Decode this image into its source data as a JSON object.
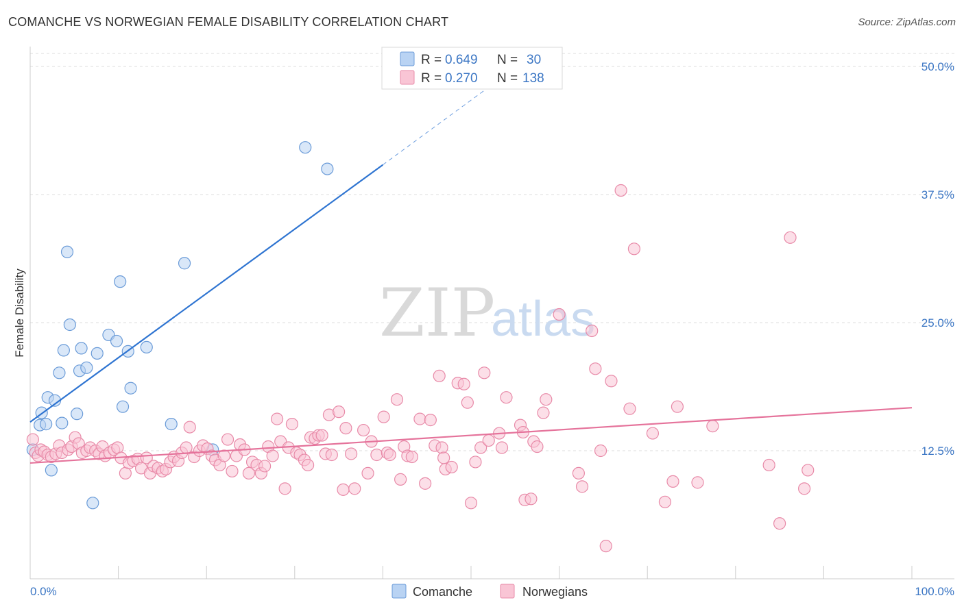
{
  "title": "COMANCHE VS NORWEGIAN FEMALE DISABILITY CORRELATION CHART",
  "source": "Source: ZipAtlas.com",
  "watermark": {
    "zip": "ZIP",
    "atlas": "atlas"
  },
  "legend": {
    "rows": [
      {
        "r_label": "R =",
        "r_value": "0.649",
        "n_label": "N =",
        "n_value": "30",
        "color": "#b9d3f3",
        "stroke": "#6a9bd8"
      },
      {
        "r_label": "R =",
        "r_value": "0.270",
        "n_label": "N =",
        "n_value": "138",
        "color": "#f9c5d5",
        "stroke": "#e88aa8"
      }
    ]
  },
  "bottom_legend": [
    {
      "label": "Comanche",
      "color": "#b9d3f3",
      "stroke": "#6a9bd8"
    },
    {
      "label": "Norwegians",
      "color": "#f9c5d5",
      "stroke": "#e88aa8"
    }
  ],
  "chart_data": {
    "type": "scatter",
    "title": "COMANCHE VS NORWEGIAN FEMALE DISABILITY CORRELATION CHART",
    "xlabel": "",
    "ylabel": "Female Disability",
    "xlim": [
      0,
      100
    ],
    "ylim": [
      0,
      50
    ],
    "x_tick_labels": [
      "0.0%",
      "100.0%"
    ],
    "y_ticks": [
      12.5,
      25.0,
      37.5,
      50.0
    ],
    "y_tick_labels": [
      "12.5%",
      "25.0%",
      "37.5%",
      "50.0%"
    ],
    "grid": true,
    "legend_position": "top-center",
    "series": [
      {
        "name": "Comanche",
        "color": "#6a9bd8",
        "fill": "#b9d3f3",
        "line_color": "#2e74d1",
        "trend": {
          "x0": 0,
          "y0": 15.3,
          "x1": 40,
          "y1": 40.4,
          "dash_to_x": 53,
          "dash_to_y": 48.6
        },
        "points": [
          [
            0.3,
            12.6
          ],
          [
            1.1,
            15.0
          ],
          [
            1.3,
            16.2
          ],
          [
            1.8,
            15.1
          ],
          [
            2.0,
            17.7
          ],
          [
            2.4,
            10.6
          ],
          [
            2.8,
            17.4
          ],
          [
            3.3,
            20.1
          ],
          [
            3.6,
            15.2
          ],
          [
            3.8,
            22.3
          ],
          [
            4.2,
            31.9
          ],
          [
            4.5,
            24.8
          ],
          [
            5.3,
            16.1
          ],
          [
            5.6,
            20.3
          ],
          [
            5.8,
            22.5
          ],
          [
            6.4,
            20.6
          ],
          [
            7.1,
            7.4
          ],
          [
            7.6,
            22.0
          ],
          [
            8.9,
            23.8
          ],
          [
            9.8,
            23.2
          ],
          [
            10.2,
            29.0
          ],
          [
            10.5,
            16.8
          ],
          [
            11.1,
            22.2
          ],
          [
            11.4,
            18.6
          ],
          [
            13.2,
            22.6
          ],
          [
            16.0,
            15.1
          ],
          [
            17.5,
            30.8
          ],
          [
            20.7,
            12.6
          ],
          [
            31.2,
            42.1
          ],
          [
            33.7,
            40.0
          ]
        ]
      },
      {
        "name": "Norwegians",
        "color": "#e88aa8",
        "fill": "#f9c5d5",
        "line_color": "#e5739b",
        "trend": {
          "x0": 0,
          "y0": 11.3,
          "x1": 100,
          "y1": 16.7
        },
        "points": [
          [
            0.3,
            13.6
          ],
          [
            0.6,
            12.3
          ],
          [
            0.9,
            12.0
          ],
          [
            1.2,
            12.6
          ],
          [
            1.6,
            12.4
          ],
          [
            2.0,
            12.1
          ],
          [
            2.4,
            11.9
          ],
          [
            2.9,
            12.2
          ],
          [
            3.3,
            13.0
          ],
          [
            3.6,
            12.3
          ],
          [
            4.3,
            12.6
          ],
          [
            4.7,
            12.9
          ],
          [
            5.1,
            13.8
          ],
          [
            5.5,
            13.2
          ],
          [
            5.9,
            12.3
          ],
          [
            6.4,
            12.5
          ],
          [
            6.8,
            12.8
          ],
          [
            7.4,
            12.5
          ],
          [
            7.8,
            12.2
          ],
          [
            8.2,
            12.9
          ],
          [
            8.5,
            12.0
          ],
          [
            9.0,
            12.3
          ],
          [
            9.5,
            12.6
          ],
          [
            9.9,
            12.8
          ],
          [
            10.3,
            11.8
          ],
          [
            10.8,
            10.3
          ],
          [
            11.2,
            11.3
          ],
          [
            11.7,
            11.5
          ],
          [
            12.2,
            11.7
          ],
          [
            12.6,
            10.8
          ],
          [
            13.2,
            11.8
          ],
          [
            13.6,
            10.3
          ],
          [
            14.0,
            11.0
          ],
          [
            14.5,
            10.8
          ],
          [
            15.0,
            10.5
          ],
          [
            15.4,
            10.7
          ],
          [
            15.9,
            11.4
          ],
          [
            16.3,
            11.9
          ],
          [
            16.8,
            11.5
          ],
          [
            17.2,
            12.3
          ],
          [
            17.7,
            12.8
          ],
          [
            18.1,
            14.8
          ],
          [
            18.6,
            11.9
          ],
          [
            19.2,
            12.5
          ],
          [
            19.6,
            13.0
          ],
          [
            20.1,
            12.7
          ],
          [
            20.6,
            12.0
          ],
          [
            21.0,
            11.6
          ],
          [
            21.5,
            11.1
          ],
          [
            22.0,
            12.0
          ],
          [
            22.4,
            13.6
          ],
          [
            22.9,
            10.5
          ],
          [
            23.4,
            12.0
          ],
          [
            23.8,
            13.1
          ],
          [
            24.3,
            12.6
          ],
          [
            24.8,
            10.3
          ],
          [
            25.2,
            11.4
          ],
          [
            25.7,
            11.1
          ],
          [
            26.2,
            10.3
          ],
          [
            26.6,
            11.0
          ],
          [
            27.0,
            12.9
          ],
          [
            27.5,
            12.0
          ],
          [
            28.0,
            15.6
          ],
          [
            28.4,
            13.4
          ],
          [
            28.9,
            8.8
          ],
          [
            29.3,
            12.8
          ],
          [
            29.7,
            15.1
          ],
          [
            30.2,
            12.3
          ],
          [
            30.6,
            12.1
          ],
          [
            31.1,
            11.6
          ],
          [
            31.5,
            11.1
          ],
          [
            31.8,
            13.8
          ],
          [
            32.3,
            13.7
          ],
          [
            32.7,
            14.0
          ],
          [
            33.1,
            14.0
          ],
          [
            33.5,
            12.2
          ],
          [
            33.9,
            16.0
          ],
          [
            34.2,
            12.1
          ],
          [
            35.0,
            16.3
          ],
          [
            35.5,
            8.7
          ],
          [
            35.8,
            14.7
          ],
          [
            36.4,
            12.2
          ],
          [
            36.8,
            8.8
          ],
          [
            37.8,
            14.5
          ],
          [
            38.3,
            10.3
          ],
          [
            38.7,
            13.4
          ],
          [
            39.3,
            12.1
          ],
          [
            40.1,
            15.8
          ],
          [
            40.5,
            12.3
          ],
          [
            40.8,
            12.1
          ],
          [
            41.6,
            17.5
          ],
          [
            42.0,
            9.7
          ],
          [
            42.4,
            12.9
          ],
          [
            42.8,
            12.0
          ],
          [
            43.3,
            11.9
          ],
          [
            44.2,
            15.6
          ],
          [
            44.8,
            9.3
          ],
          [
            45.4,
            15.5
          ],
          [
            45.9,
            13.0
          ],
          [
            46.4,
            19.8
          ],
          [
            46.7,
            12.8
          ],
          [
            46.9,
            11.8
          ],
          [
            47.1,
            10.7
          ],
          [
            47.8,
            10.9
          ],
          [
            48.5,
            19.1
          ],
          [
            49.2,
            19.0
          ],
          [
            49.6,
            17.2
          ],
          [
            50.0,
            7.4
          ],
          [
            50.5,
            11.4
          ],
          [
            51.1,
            12.8
          ],
          [
            51.5,
            20.1
          ],
          [
            52.0,
            13.5
          ],
          [
            53.2,
            14.2
          ],
          [
            53.5,
            12.8
          ],
          [
            54.0,
            17.7
          ],
          [
            55.6,
            15.0
          ],
          [
            55.9,
            14.3
          ],
          [
            56.1,
            7.7
          ],
          [
            56.8,
            7.8
          ],
          [
            57.1,
            13.4
          ],
          [
            57.5,
            12.9
          ],
          [
            58.2,
            16.2
          ],
          [
            58.5,
            17.5
          ],
          [
            60.0,
            25.8
          ],
          [
            62.2,
            10.3
          ],
          [
            62.6,
            9.0
          ],
          [
            63.7,
            24.2
          ],
          [
            64.1,
            20.5
          ],
          [
            64.7,
            12.5
          ],
          [
            65.3,
            3.2
          ],
          [
            65.9,
            19.3
          ],
          [
            67.0,
            37.9
          ],
          [
            68.0,
            16.6
          ],
          [
            68.5,
            32.2
          ],
          [
            70.6,
            14.2
          ],
          [
            72.0,
            7.5
          ],
          [
            72.9,
            9.5
          ],
          [
            73.4,
            16.8
          ],
          [
            75.7,
            9.4
          ],
          [
            77.4,
            14.9
          ],
          [
            83.8,
            11.1
          ],
          [
            85.0,
            5.4
          ],
          [
            87.8,
            8.8
          ],
          [
            88.2,
            10.6
          ],
          [
            86.2,
            33.3
          ]
        ]
      }
    ]
  }
}
